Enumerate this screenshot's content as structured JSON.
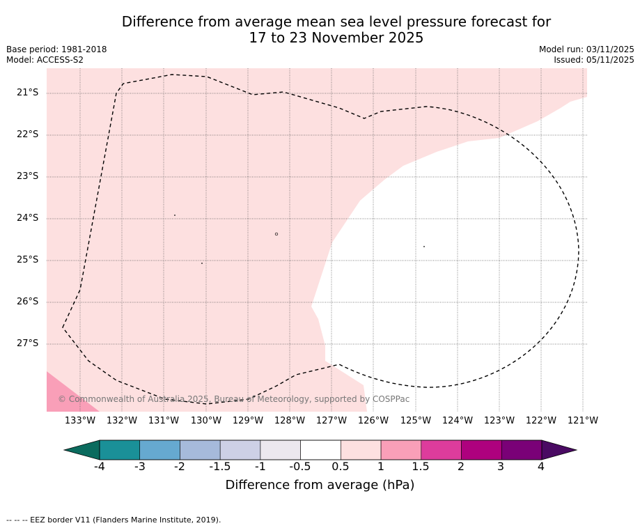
{
  "title_line1": "Difference from average mean sea level pressure forecast for",
  "title_line2": "17 to 23 November 2025",
  "base_period": "Base period: 1981-2018",
  "model": "Model: ACCESS-S2",
  "model_run": "Model run: 03/11/2025",
  "issued": "Issued: 05/11/2025",
  "copyright": "© Commonwealth of Australia 2025, Bureau of Meteorology, supported by COSPPac",
  "lat_labels": [
    "21°S",
    "22°S",
    "23°S",
    "24°S",
    "25°S",
    "26°S",
    "27°S"
  ],
  "lon_labels": [
    "133°W",
    "132°W",
    "131°W",
    "130°W",
    "129°W",
    "128°W",
    "127°W",
    "126°W",
    "125°W",
    "124°W",
    "123°W",
    "122°W",
    "121°W"
  ],
  "colorbar": {
    "title": "Difference from average (hPa)",
    "tick_labels": [
      "-4",
      "-3",
      "-2",
      "-1.5",
      "-1",
      "-0.5",
      "0.5",
      "1",
      "1.5",
      "2",
      "3",
      "4"
    ],
    "under_color": "#0b6b5e",
    "over_color": "#4a0a63",
    "colors": [
      "#1a9098",
      "#66a9d0",
      "#a6badb",
      "#cdd0e6",
      "#ece8ee",
      "#ffffff",
      "#fde0e0",
      "#f99fb8",
      "#dd3c9c",
      "#ae017e",
      "#7a0177"
    ]
  },
  "fills": {
    "light_pink": "#fde0e0",
    "mid_pink": "#f99fb8"
  },
  "footnote": "-- -- -- EEZ border V11 (Flanders Marine Institute, 2019)."
}
